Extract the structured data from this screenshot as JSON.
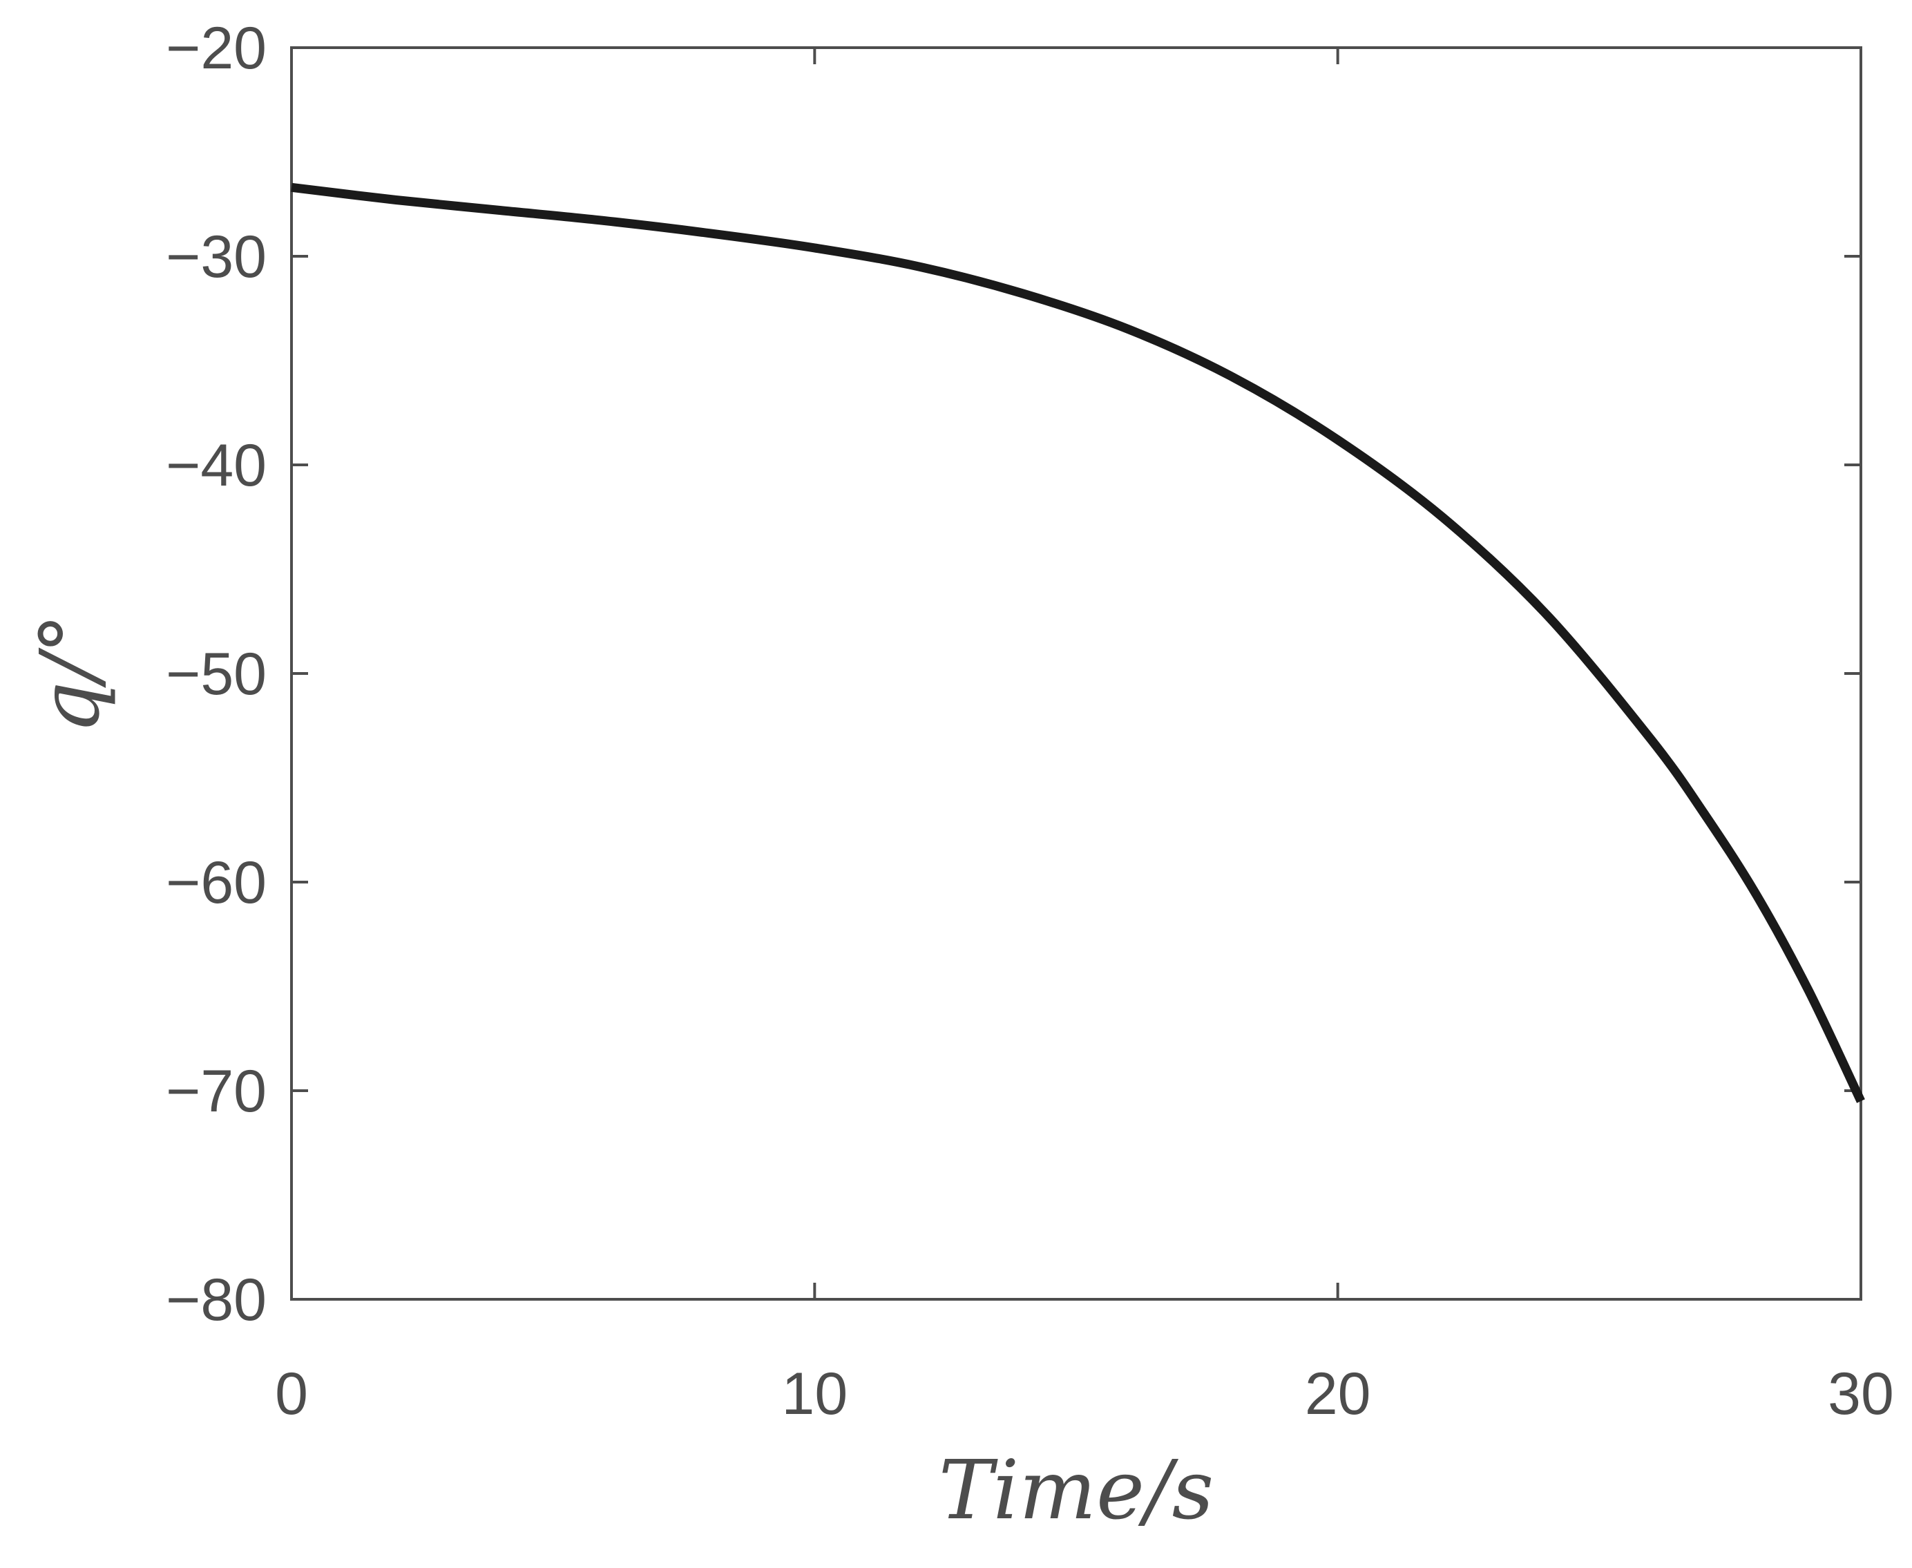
{
  "chart_data": {
    "type": "line",
    "title": "",
    "xlabel": "Time/s",
    "ylabel": "q/°",
    "xlim": [
      0,
      30
    ],
    "ylim": [
      -80,
      -20
    ],
    "x_ticks": [
      0,
      10,
      20,
      30
    ],
    "x_tick_labels": [
      "0",
      "10",
      "20",
      "30"
    ],
    "y_ticks": [
      -80,
      -70,
      -60,
      -50,
      -40,
      -30,
      -20
    ],
    "y_tick_labels": [
      "−80",
      "−70",
      "−60",
      "−50",
      "−40",
      "−30",
      "−20"
    ],
    "grid": false,
    "legend": "none",
    "series": [
      {
        "color": "#1a1a1a",
        "x": [
          0,
          2,
          4,
          6,
          8,
          10,
          12,
          14,
          16,
          18,
          20,
          22,
          24,
          26,
          27,
          28,
          29,
          30
        ],
        "y": [
          -26.7,
          -27.3,
          -27.8,
          -28.3,
          -28.9,
          -29.6,
          -30.5,
          -31.8,
          -33.5,
          -35.8,
          -38.8,
          -42.5,
          -47.2,
          -53.2,
          -56.7,
          -60.6,
          -65.2,
          -70.5
        ]
      }
    ]
  }
}
